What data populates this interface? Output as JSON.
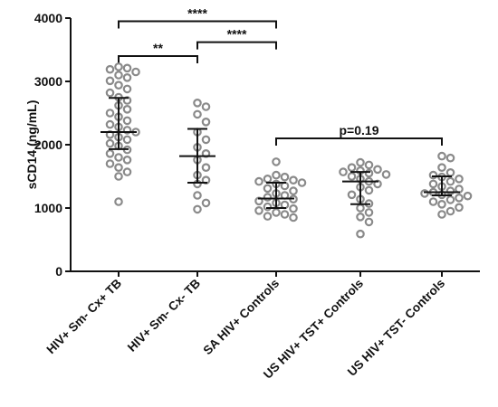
{
  "chart_data": {
    "type": "scatter",
    "ylabel": "sCD14 (ng/mL)",
    "ylim": [
      0,
      4000
    ],
    "yticks": [
      "0",
      "1000",
      "2000",
      "3000",
      "4000"
    ],
    "categories": [
      "HIV+ Sm- Cx+ TB",
      "HIV+ Sm- Cx- TB",
      "SA HIV+ Controls",
      "US HIV+ TST+ Controls",
      "US HIV+ TST- Controls"
    ],
    "point_color": "#8a8a8a",
    "series": [
      {
        "category": "HIV+ Sm- Cx+ TB",
        "median": 2200,
        "q1": 1930,
        "q3": 2740,
        "values": [
          3230,
          3210,
          3190,
          3150,
          3100,
          3060,
          3010,
          2940,
          2880,
          2820,
          2750,
          2700,
          2620,
          2560,
          2500,
          2440,
          2380,
          2320,
          2280,
          2230,
          2200,
          2160,
          2120,
          2080,
          2020,
          1980,
          1920,
          1860,
          1800,
          1760,
          1700,
          1640,
          1570,
          1500,
          1100
        ]
      },
      {
        "category": "HIV+ Sm- Cx- TB",
        "median": 1820,
        "q1": 1400,
        "q3": 2250,
        "values": [
          2660,
          2600,
          2480,
          2360,
          2200,
          2080,
          1960,
          1860,
          1760,
          1640,
          1520,
          1440,
          1380,
          1200,
          1080,
          980
        ]
      },
      {
        "category": "SA HIV+ Controls",
        "median": 1150,
        "q1": 1000,
        "q3": 1400,
        "values": [
          1730,
          1520,
          1490,
          1460,
          1440,
          1420,
          1400,
          1380,
          1350,
          1310,
          1270,
          1230,
          1200,
          1170,
          1140,
          1110,
          1080,
          1050,
          1020,
          990,
          960,
          930,
          900,
          870,
          850
        ]
      },
      {
        "category": "US HIV+ TST+ Controls",
        "median": 1420,
        "q1": 1060,
        "q3": 1570,
        "values": [
          1720,
          1680,
          1640,
          1610,
          1590,
          1570,
          1550,
          1530,
          1500,
          1460,
          1420,
          1380,
          1330,
          1280,
          1210,
          1140,
          1070,
          1000,
          930,
          860,
          780,
          590
        ]
      },
      {
        "category": "US HIV+ TST- Controls",
        "median": 1250,
        "q1": 1200,
        "q3": 1500,
        "values": [
          1820,
          1790,
          1640,
          1560,
          1520,
          1490,
          1460,
          1420,
          1380,
          1340,
          1300,
          1270,
          1250,
          1230,
          1210,
          1190,
          1160,
          1130,
          1100,
          1060,
          1010,
          950,
          900
        ]
      }
    ],
    "comparisons": [
      {
        "from": 0,
        "to": 2,
        "label": "****",
        "y": 3950
      },
      {
        "from": 0,
        "to": 1,
        "label": "**",
        "y": 3400
      },
      {
        "from": 1,
        "to": 2,
        "label": "****",
        "y": 3620
      },
      {
        "from": 2,
        "to": 4,
        "label": "p=0.19",
        "y": 2100
      }
    ]
  }
}
